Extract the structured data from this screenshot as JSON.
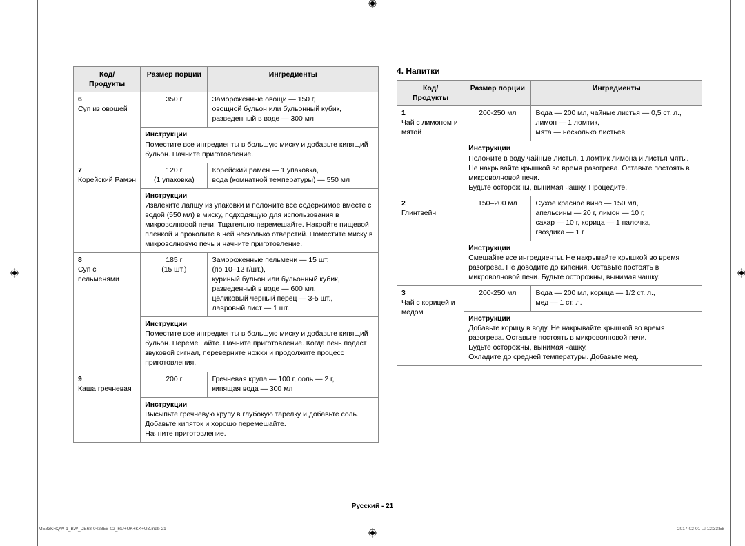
{
  "section_beverages_title": "4. Напитки",
  "headers": {
    "code": "Код/\nПродукты",
    "portion": "Размер порции",
    "ingredients": "Ингредиенты"
  },
  "instr_label": "Инструкции",
  "left_rows": [
    {
      "code": "6\nСуп из овощей",
      "portion": "350 г",
      "ingredients": "Замороженные овощи — 150 г,\nовощной бульон или бульонный кубик, разведенный в воде — 300 мл",
      "instructions": "Поместите все ингредиенты в большую миску и добавьте кипящий бульон. Начните приготовление."
    },
    {
      "code": "7\nКорейский Рамэн",
      "portion": "120 г\n(1 упаковка)",
      "ingredients": "Корейский рамен — 1 упаковка,\nвода (комнатной температуры) — 550 мл",
      "instructions": "Извлеките лапшу из упаковки и положите все содержимое вместе с водой (550 мл) в миску, подходящую для использования в микроволновой печи. Тщательно перемешайте. Накройте пищевой пленкой и проколите в ней несколько отверстий. Поместите миску в микроволновую печь и начните приготовление."
    },
    {
      "code": "8\nСуп с пельменями",
      "portion": "185 г\n(15 шт.)",
      "ingredients": "Замороженные пельмени — 15 шт.\n(по 10–12 г/шт.),\nкуриный бульон или бульонный кубик, разведенный в воде — 600 мл,\nцеликовый черный перец — 3-5 шт.,\nлавровый лист — 1 шт.",
      "instructions": "Поместите все ингредиенты в большую миску и добавьте кипящий бульон. Перемешайте. Начните приготовление. Когда печь подаст звуковой сигнал, переверните ножки и продолжите процесс приготовления."
    },
    {
      "code": "9\nКаша гречневая",
      "portion": "200 г",
      "ingredients": "Гречневая крупа — 100 г, соль — 2 г,\nкипящая вода — 300 мл",
      "instructions": "Высыпьте гречневую крупу в глубокую тарелку и добавьте соль. Добавьте кипяток и хорошо перемешайте.\nНачните приготовление."
    }
  ],
  "right_rows": [
    {
      "code": "1\nЧай с лимоном и мятой",
      "portion": "200-250 мл",
      "ingredients": "Вода — 200 мл, чайные листья — 0,5 ст. л.,\nлимон — 1 ломтик,\nмята — несколько листьев.",
      "instructions": "Положите в воду чайные листья, 1 ломтик лимона и листья мяты. Не накрывайте крышкой во время разогрева. Оставьте постоять в микроволновой печи.\nБудьте осторожны, вынимая чашку. Процедите."
    },
    {
      "code": "2\nГлинтвейн",
      "portion": "150–200 мл",
      "ingredients": "Сухое красное вино — 150 мл,\nапельсины — 20 г, лимон — 10 г,\nсахар — 10 г, корица — 1 палочка,\nгвоздика — 1 г",
      "instructions": "Смешайте все ингредиенты. Не накрывайте крышкой во время разогрева. Не доводите до кипения. Оставьте постоять в микроволновой печи. Будьте осторожны, вынимая чашку."
    },
    {
      "code": "3\nЧай с корицей и медом",
      "portion": "200-250 мл",
      "ingredients": "Вода — 200 мл, корица — 1/2 ст. л.,\nмед — 1 ст. л.",
      "instructions": "Добавьте корицу в воду. Не накрывайте крышкой во время разогрева. Оставьте постоять в микроволновой печи.\nБудьте осторожны, вынимая чашку.\nОхладите до средней температуры. Добавьте мед."
    }
  ],
  "footer_center": "Русский - 21",
  "footer_left": "ME83KRQW-1_BW_DE68-04285B-02_RU+UK+KK+UZ.indb   21",
  "footer_right": "2017-02-01   ☐ 12:33:58"
}
